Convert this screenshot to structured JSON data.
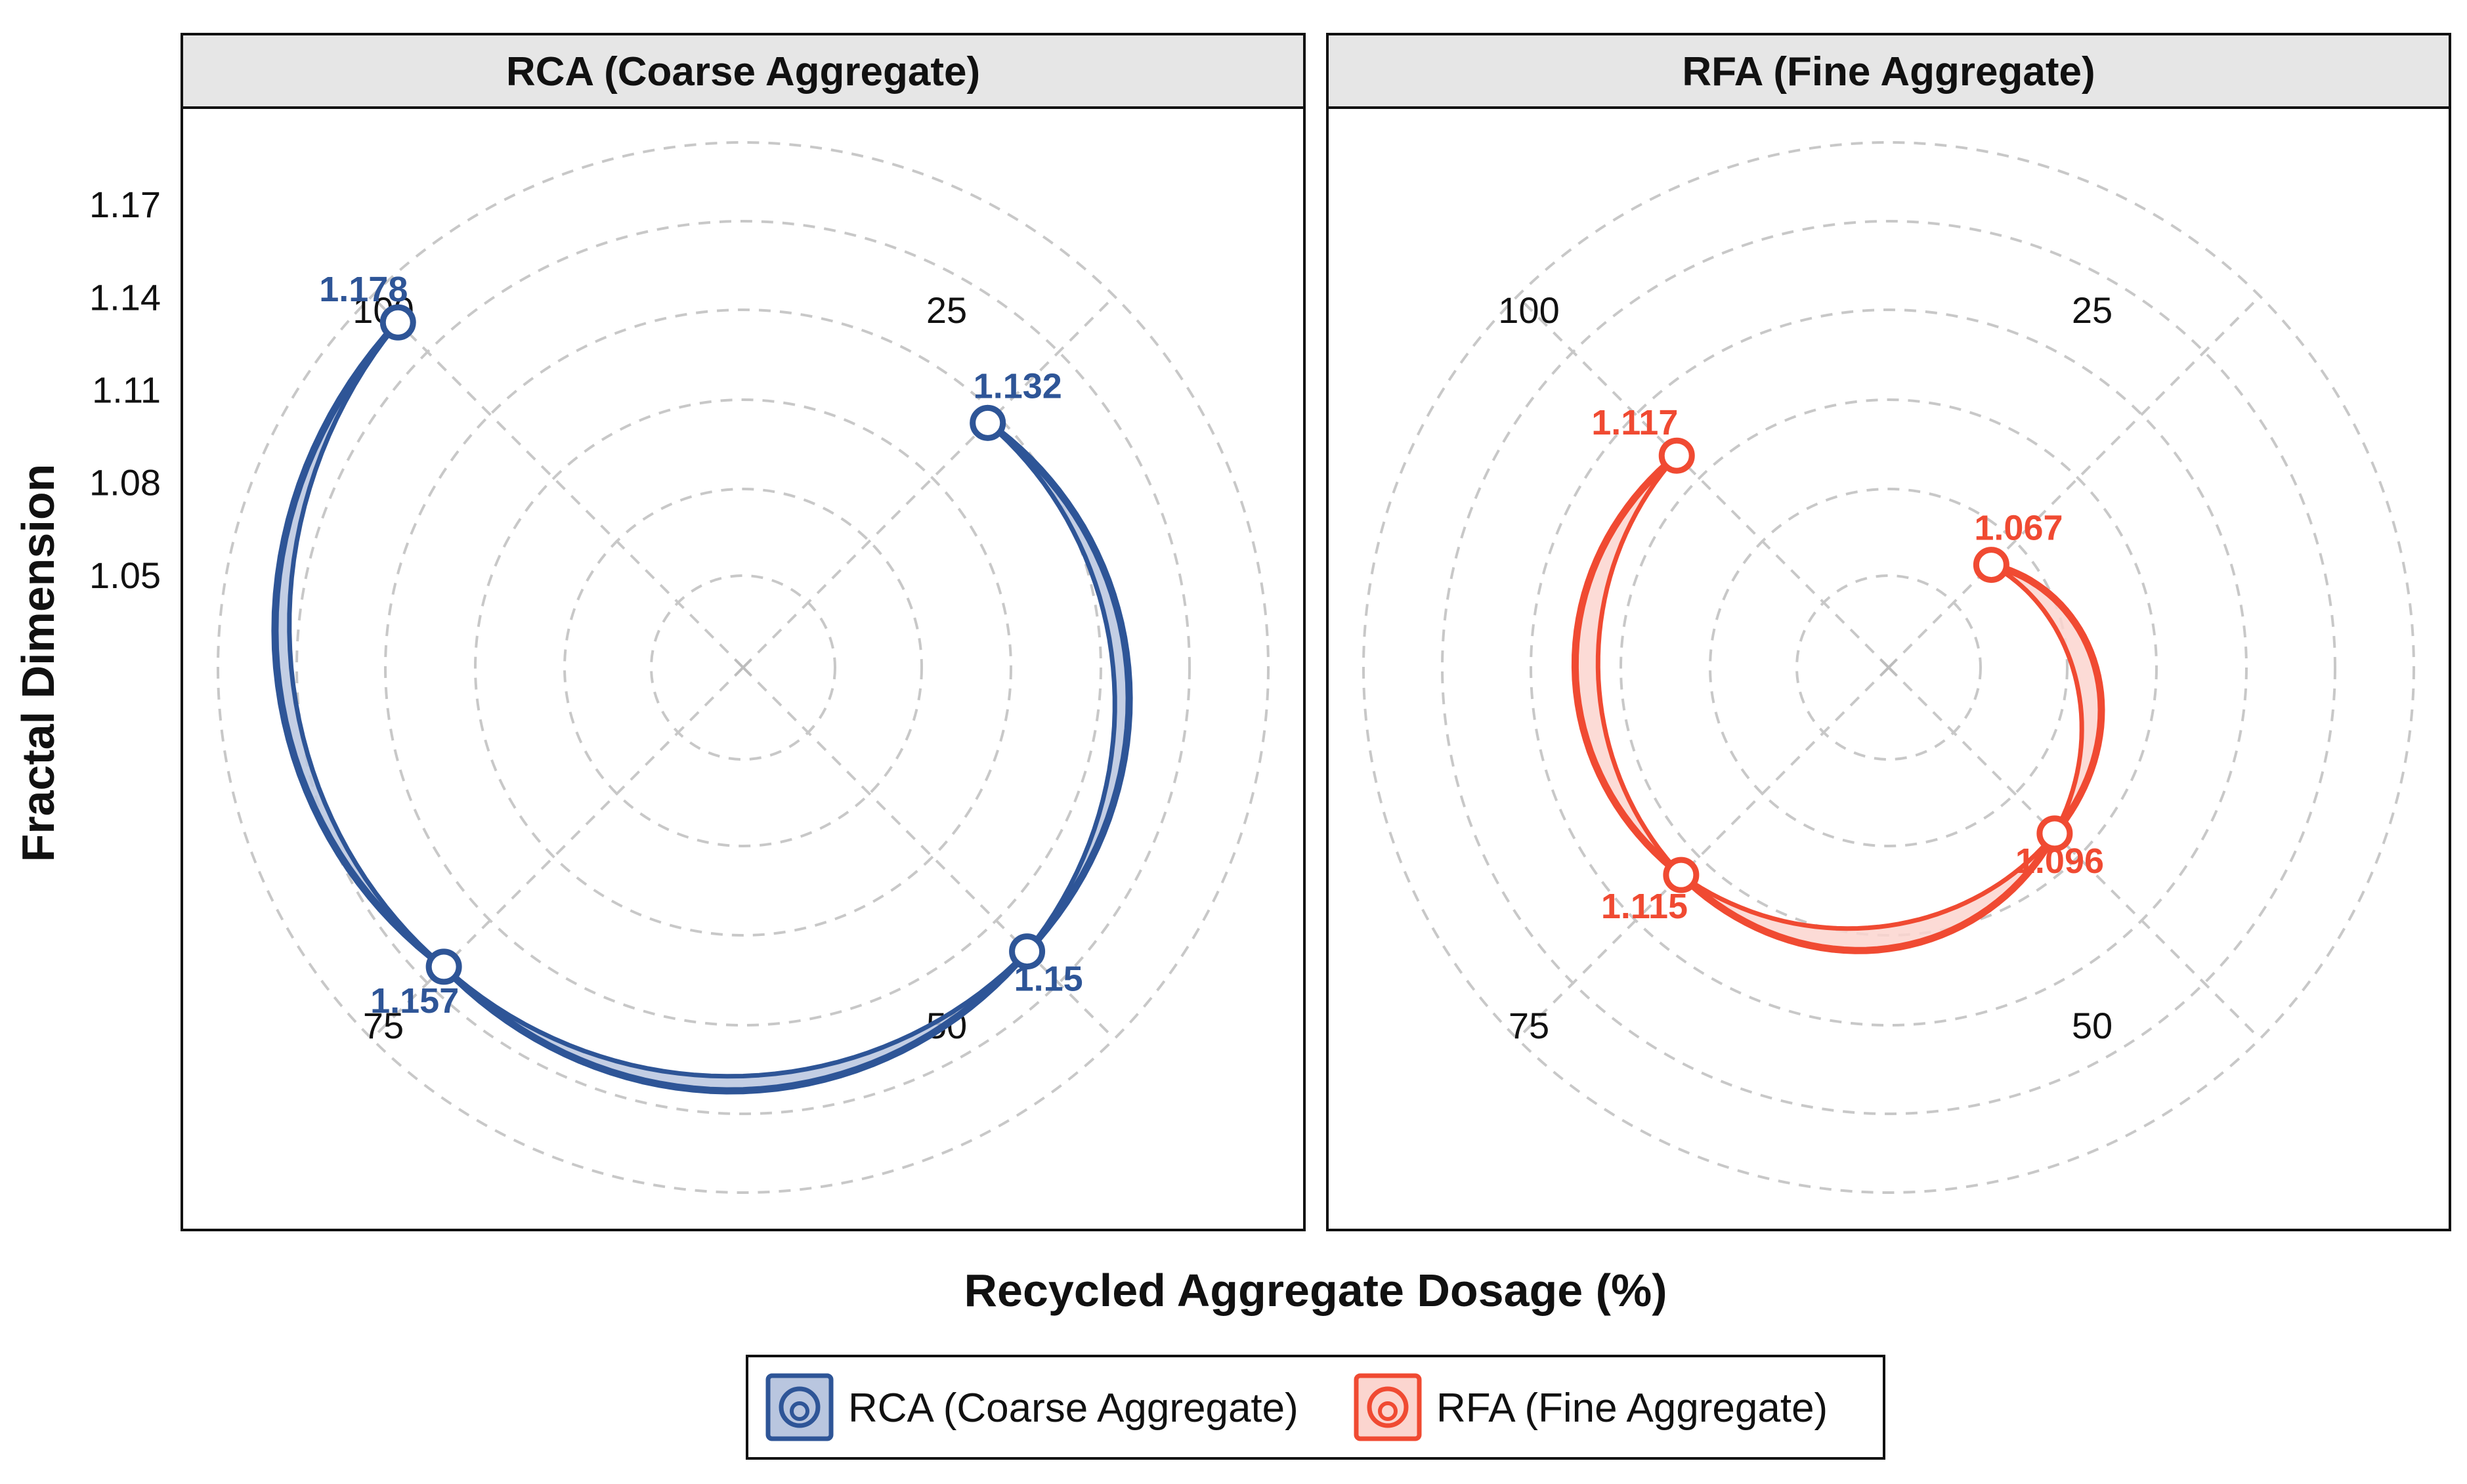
{
  "chart_data": {
    "type": "polar-line",
    "xlabel": "Recycled Aggregate Dosage (%)",
    "ylabel": "Fractal Dimension",
    "radial_ticks": [
      "1.05",
      "1.08",
      "1.11",
      "1.14",
      "1.17"
    ],
    "radial_tick_values": [
      1.05,
      1.08,
      1.11,
      1.14,
      1.17
    ],
    "radial_range": [
      1.02,
      1.19
    ],
    "angle_labels": [
      "25",
      "50",
      "75",
      "100"
    ],
    "angle_values": [
      25,
      50,
      75,
      100
    ],
    "panels": [
      {
        "title": "RCA (Coarse Aggregate)",
        "color": "#2e5597",
        "fill": "#b9c6df",
        "points": [
          {
            "dosage": 25,
            "value": 1.132,
            "label": "1.132"
          },
          {
            "dosage": 50,
            "value": 1.15,
            "label": "1.15"
          },
          {
            "dosage": 75,
            "value": 1.157,
            "label": "1.157"
          },
          {
            "dosage": 100,
            "value": 1.178,
            "label": "1.178"
          }
        ]
      },
      {
        "title": "RFA (Fine Aggregate)",
        "color": "#f04a32",
        "fill": "#fbd5cf",
        "points": [
          {
            "dosage": 25,
            "value": 1.067,
            "label": "1.067"
          },
          {
            "dosage": 50,
            "value": 1.096,
            "label": "1.096"
          },
          {
            "dosage": 75,
            "value": 1.115,
            "label": "1.115"
          },
          {
            "dosage": 100,
            "value": 1.117,
            "label": "1.117"
          }
        ]
      }
    ],
    "legend": [
      {
        "label": "RCA (Coarse Aggregate)",
        "color": "#2e5597",
        "icon": "spiral-icon"
      },
      {
        "label": "RFA (Fine Aggregate)",
        "color": "#f04a32",
        "icon": "spiral-icon"
      }
    ],
    "legend_position": "bottom"
  }
}
